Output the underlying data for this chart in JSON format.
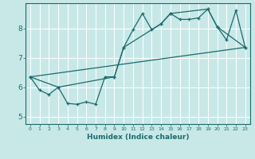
{
  "title": "",
  "xlabel": "Humidex (Indice chaleur)",
  "bg_color": "#c8e8e8",
  "grid_color": "#ffffff",
  "line_color": "#1a6b6b",
  "xlim": [
    -0.5,
    23.5
  ],
  "ylim": [
    4.75,
    8.85
  ],
  "yticks": [
    5,
    6,
    7,
    8
  ],
  "xticks": [
    0,
    1,
    2,
    3,
    4,
    5,
    6,
    7,
    8,
    9,
    10,
    11,
    12,
    13,
    14,
    15,
    16,
    17,
    18,
    19,
    20,
    21,
    22,
    23
  ],
  "line1_x": [
    0,
    1,
    2,
    3,
    4,
    5,
    6,
    7,
    8,
    9,
    10,
    11,
    12,
    13,
    14,
    15,
    16,
    17,
    18,
    19,
    20,
    21,
    22,
    23
  ],
  "line1_y": [
    6.35,
    5.9,
    5.75,
    6.0,
    5.45,
    5.42,
    5.5,
    5.42,
    6.35,
    6.35,
    7.35,
    7.95,
    8.5,
    7.95,
    8.15,
    8.5,
    8.3,
    8.3,
    8.35,
    8.65,
    8.05,
    7.6,
    8.6,
    7.35
  ],
  "line2_x": [
    0,
    3,
    9,
    10,
    14,
    15,
    19,
    20,
    23
  ],
  "line2_y": [
    6.35,
    6.0,
    6.35,
    7.35,
    8.15,
    8.5,
    8.65,
    8.05,
    7.35
  ],
  "line3_x": [
    0,
    23
  ],
  "line3_y": [
    6.35,
    7.35
  ]
}
